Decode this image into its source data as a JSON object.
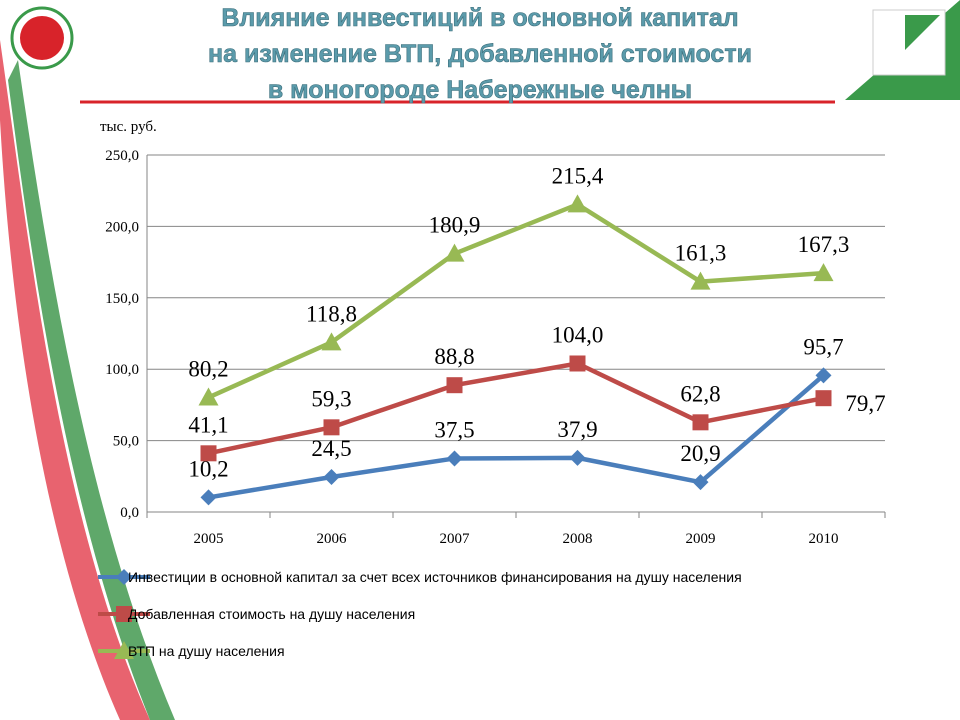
{
  "chart_data": {
    "type": "line",
    "title": [
      "Влияние инвестиций в основной капитал",
      "на изменение ВТП, добавленной стоимости",
      "в моногороде Набережные челны"
    ],
    "y_label": "тыс. руб.",
    "categories": [
      "2005",
      "2006",
      "2007",
      "2008",
      "2009",
      "2010"
    ],
    "series": [
      {
        "name": "Инвестиции в основной капитал за счет всех источников финансирования на душу населения",
        "color": "#4a7ebb",
        "marker": "diamond",
        "values": [
          10.2,
          24.5,
          37.5,
          37.9,
          20.9,
          95.7
        ],
        "value_labels": [
          "10,2",
          "24,5",
          "37,5",
          "37,9",
          "20,9",
          "95,7"
        ]
      },
      {
        "name": "Добавленная стоимость на душу населения",
        "color": "#be4b48",
        "marker": "square",
        "values": [
          41.1,
          59.3,
          88.8,
          104.0,
          62.8,
          79.7
        ],
        "value_labels": [
          "41,1",
          "59,3",
          "88,8",
          "104,0",
          "62,8",
          "79,7"
        ]
      },
      {
        "name": "ВТП на душу населения",
        "color": "#98b954",
        "marker": "triangle",
        "values": [
          80.2,
          118.8,
          180.9,
          215.4,
          161.3,
          167.3
        ],
        "value_labels": [
          "80,2",
          "118,8",
          "180,9",
          "215,4",
          "161,3",
          "167,3"
        ]
      }
    ],
    "ylim": [
      0,
      250
    ],
    "yticks": [
      {
        "value": 0,
        "label": "0,0"
      },
      {
        "value": 50,
        "label": "50,0"
      },
      {
        "value": 100,
        "label": "100,0"
      },
      {
        "value": 150,
        "label": "150,0"
      },
      {
        "value": 200,
        "label": "200,0"
      },
      {
        "value": 250,
        "label": "250,0"
      }
    ],
    "grid": true,
    "legend": "bottom"
  }
}
